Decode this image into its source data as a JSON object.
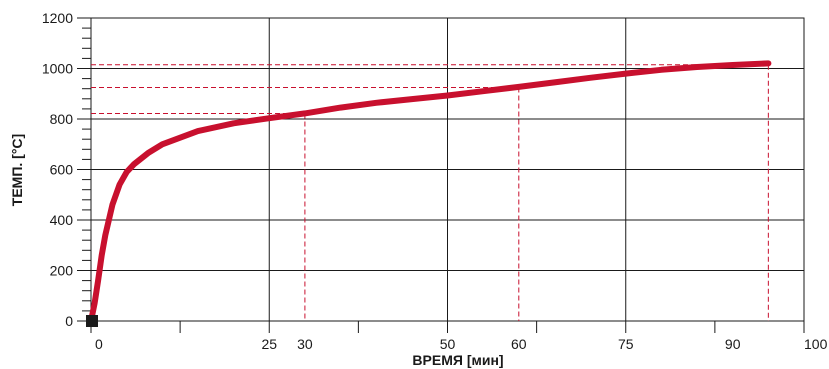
{
  "chart_data": {
    "type": "line",
    "title": "",
    "xlabel": "ВРЕМЯ [мин]",
    "ylabel": "ТЕМП. [°C]",
    "xlim": [
      0,
      100
    ],
    "ylim": [
      0,
      1200
    ],
    "x_tick_labels": [
      "0",
      "25",
      "30",
      "50",
      "60",
      "75",
      "90",
      "100"
    ],
    "y_tick_labels": [
      "0",
      "200",
      "400",
      "600",
      "800",
      "1000",
      "1200"
    ],
    "series": [
      {
        "color": "#c8102e",
        "x": [
          0,
          0.5,
          1,
          1.5,
          2,
          3,
          4,
          5,
          6,
          8,
          10,
          15,
          20,
          25,
          30,
          35,
          40,
          45,
          50,
          55,
          60,
          65,
          70,
          75,
          80,
          85,
          90,
          95
        ],
        "y": [
          0,
          70,
          160,
          260,
          340,
          460,
          540,
          590,
          620,
          665,
          700,
          752,
          783,
          803,
          822,
          845,
          864,
          879,
          893,
          910,
          927,
          945,
          963,
          980,
          995,
          1006,
          1014,
          1020
        ]
      }
    ],
    "reference_lines": [
      {
        "x": 30,
        "y": 822
      },
      {
        "x": 60,
        "y": 925
      },
      {
        "x": 95,
        "y": 1015
      }
    ],
    "grid": true
  }
}
